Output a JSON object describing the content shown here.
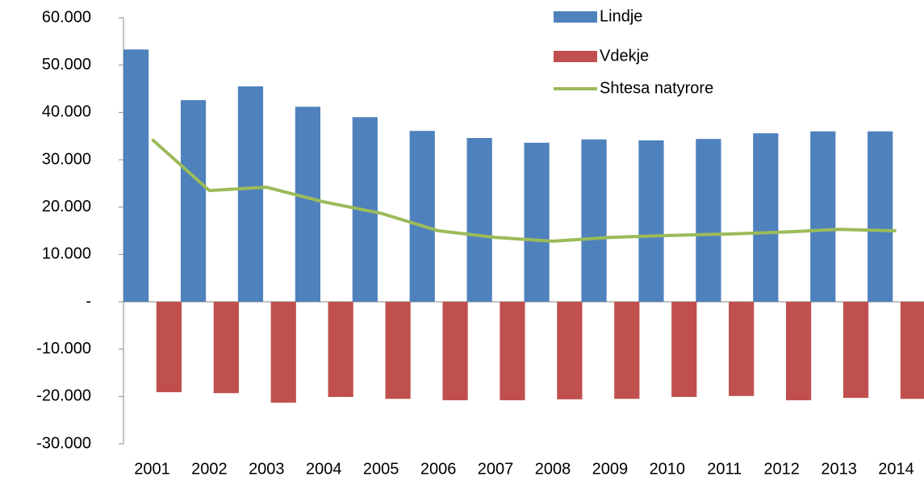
{
  "chart_data": {
    "type": "bar",
    "categories": [
      "2001",
      "2002",
      "2003",
      "2004",
      "2005",
      "2006",
      "2007",
      "2008",
      "2009",
      "2010",
      "2011",
      "2012",
      "2013",
      "2014"
    ],
    "series": [
      {
        "name": "Lindje",
        "color": "#4f81bd",
        "kind": "bar",
        "values": [
          53300,
          42600,
          45500,
          41200,
          39000,
          36100,
          34600,
          33600,
          34300,
          34100,
          34400,
          35600,
          36000,
          36000
        ]
      },
      {
        "name": "Vdekje",
        "color": "#c0504d",
        "kind": "bar",
        "values": [
          -19100,
          -19300,
          -21300,
          -20100,
          -20500,
          -20800,
          -20800,
          -20600,
          -20500,
          -20100,
          -19900,
          -20800,
          -20300,
          -20500
        ]
      },
      {
        "name": "Shtesa natyrore",
        "color": "#9bbb59",
        "kind": "line",
        "values": [
          34300,
          23500,
          24200,
          21100,
          18700,
          15000,
          13600,
          12800,
          13600,
          14000,
          14300,
          14700,
          15300,
          15000
        ]
      }
    ],
    "ylim": [
      -30000,
      60000
    ],
    "yticks": [
      {
        "value": -30000,
        "label": "-30.000"
      },
      {
        "value": -20000,
        "label": "-20.000"
      },
      {
        "value": -10000,
        "label": "-10.000"
      },
      {
        "value": 0,
        "label": "-"
      },
      {
        "value": 10000,
        "label": "10.000"
      },
      {
        "value": 20000,
        "label": "20.000"
      },
      {
        "value": 30000,
        "label": "30.000"
      },
      {
        "value": 40000,
        "label": "40.000"
      },
      {
        "value": 50000,
        "label": "50.000"
      },
      {
        "value": 60000,
        "label": "60.000"
      }
    ]
  }
}
